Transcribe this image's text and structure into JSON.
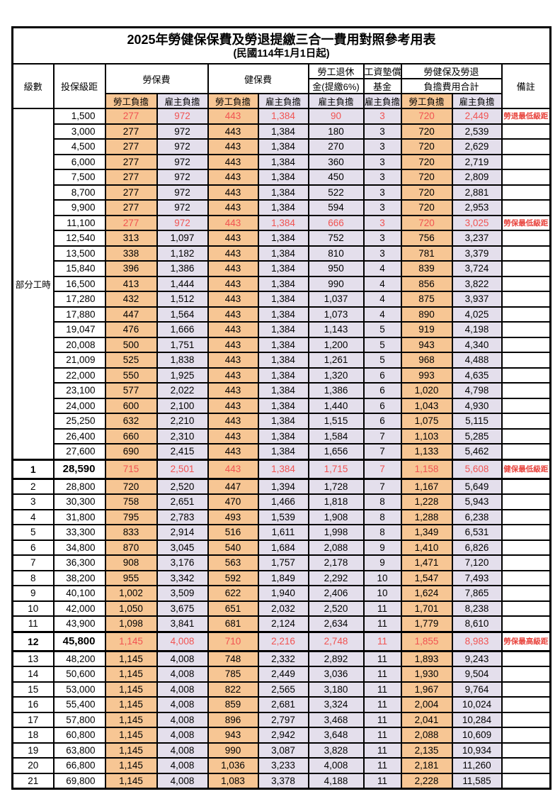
{
  "title": "2025年勞健保保費及勞退提繳三合一費用對照參考用表",
  "subtitle": "(民國114年1月1日起)",
  "part_time_label": "部分工時",
  "colors": {
    "employee_burden_bg": "#F7C694",
    "employer_burden_bg": "#E4DFEC",
    "highlight_value_text": "#F15352",
    "remark_text": "#E8433C",
    "grid_border": "#000000"
  },
  "columns": {
    "level": "級數",
    "bracket": "投保級距",
    "labor_fee": "勞保費",
    "health_fee": "健保費",
    "pension_line1": "勞工退休",
    "pension_line2": "金(提繳6%)",
    "fund_line1": "工資墊償",
    "fund_line2": "基金",
    "total_line1": "勞健保及勞退",
    "total_line2": "負擔費用合計",
    "remark": "備註",
    "employee_burden": "勞工負擔",
    "employer_burden": "雇主負擔"
  },
  "rows": [
    {
      "level": "",
      "bracket": "1,500",
      "cells": [
        "277",
        "972",
        "443",
        "1,384",
        "90",
        "3",
        "720",
        "2,449"
      ],
      "remark": "勞退最低級距",
      "highlight": true,
      "bold": false
    },
    {
      "level": "",
      "bracket": "3,000",
      "cells": [
        "277",
        "972",
        "443",
        "1,384",
        "180",
        "3",
        "720",
        "2,539"
      ],
      "remark": "",
      "highlight": false,
      "bold": false
    },
    {
      "level": "",
      "bracket": "4,500",
      "cells": [
        "277",
        "972",
        "443",
        "1,384",
        "270",
        "3",
        "720",
        "2,629"
      ],
      "remark": "",
      "highlight": false,
      "bold": false
    },
    {
      "level": "",
      "bracket": "6,000",
      "cells": [
        "277",
        "972",
        "443",
        "1,384",
        "360",
        "3",
        "720",
        "2,719"
      ],
      "remark": "",
      "highlight": false,
      "bold": false
    },
    {
      "level": "",
      "bracket": "7,500",
      "cells": [
        "277",
        "972",
        "443",
        "1,384",
        "450",
        "3",
        "720",
        "2,809"
      ],
      "remark": "",
      "highlight": false,
      "bold": false
    },
    {
      "level": "",
      "bracket": "8,700",
      "cells": [
        "277",
        "972",
        "443",
        "1,384",
        "522",
        "3",
        "720",
        "2,881"
      ],
      "remark": "",
      "highlight": false,
      "bold": false
    },
    {
      "level": "",
      "bracket": "9,900",
      "cells": [
        "277",
        "972",
        "443",
        "1,384",
        "594",
        "3",
        "720",
        "2,953"
      ],
      "remark": "",
      "highlight": false,
      "bold": false
    },
    {
      "level": "",
      "bracket": "11,100",
      "cells": [
        "277",
        "972",
        "443",
        "1,384",
        "666",
        "3",
        "720",
        "3,025"
      ],
      "remark": "勞保最低級距",
      "highlight": true,
      "bold": false
    },
    {
      "level": "",
      "bracket": "12,540",
      "cells": [
        "313",
        "1,097",
        "443",
        "1,384",
        "752",
        "3",
        "756",
        "3,237"
      ],
      "remark": "",
      "highlight": false,
      "bold": false
    },
    {
      "level": "",
      "bracket": "13,500",
      "cells": [
        "338",
        "1,182",
        "443",
        "1,384",
        "810",
        "3",
        "781",
        "3,379"
      ],
      "remark": "",
      "highlight": false,
      "bold": false
    },
    {
      "level": "",
      "bracket": "15,840",
      "cells": [
        "396",
        "1,386",
        "443",
        "1,384",
        "950",
        "4",
        "839",
        "3,724"
      ],
      "remark": "",
      "highlight": false,
      "bold": false
    },
    {
      "level": "",
      "bracket": "16,500",
      "cells": [
        "413",
        "1,444",
        "443",
        "1,384",
        "990",
        "4",
        "856",
        "3,822"
      ],
      "remark": "",
      "highlight": false,
      "bold": false
    },
    {
      "level": "",
      "bracket": "17,280",
      "cells": [
        "432",
        "1,512",
        "443",
        "1,384",
        "1,037",
        "4",
        "875",
        "3,937"
      ],
      "remark": "",
      "highlight": false,
      "bold": false
    },
    {
      "level": "",
      "bracket": "17,880",
      "cells": [
        "447",
        "1,564",
        "443",
        "1,384",
        "1,073",
        "4",
        "890",
        "4,025"
      ],
      "remark": "",
      "highlight": false,
      "bold": false
    },
    {
      "level": "",
      "bracket": "19,047",
      "cells": [
        "476",
        "1,666",
        "443",
        "1,384",
        "1,143",
        "5",
        "919",
        "4,198"
      ],
      "remark": "",
      "highlight": false,
      "bold": false
    },
    {
      "level": "",
      "bracket": "20,008",
      "cells": [
        "500",
        "1,751",
        "443",
        "1,384",
        "1,200",
        "5",
        "943",
        "4,340"
      ],
      "remark": "",
      "highlight": false,
      "bold": false
    },
    {
      "level": "",
      "bracket": "21,009",
      "cells": [
        "525",
        "1,838",
        "443",
        "1,384",
        "1,261",
        "5",
        "968",
        "4,488"
      ],
      "remark": "",
      "highlight": false,
      "bold": false
    },
    {
      "level": "",
      "bracket": "22,000",
      "cells": [
        "550",
        "1,925",
        "443",
        "1,384",
        "1,320",
        "6",
        "993",
        "4,635"
      ],
      "remark": "",
      "highlight": false,
      "bold": false
    },
    {
      "level": "",
      "bracket": "23,100",
      "cells": [
        "577",
        "2,022",
        "443",
        "1,384",
        "1,386",
        "6",
        "1,020",
        "4,798"
      ],
      "remark": "",
      "highlight": false,
      "bold": false
    },
    {
      "level": "",
      "bracket": "24,000",
      "cells": [
        "600",
        "2,100",
        "443",
        "1,384",
        "1,440",
        "6",
        "1,043",
        "4,930"
      ],
      "remark": "",
      "highlight": false,
      "bold": false
    },
    {
      "level": "",
      "bracket": "25,250",
      "cells": [
        "632",
        "2,210",
        "443",
        "1,384",
        "1,515",
        "6",
        "1,075",
        "5,115"
      ],
      "remark": "",
      "highlight": false,
      "bold": false
    },
    {
      "level": "",
      "bracket": "26,400",
      "cells": [
        "660",
        "2,310",
        "443",
        "1,384",
        "1,584",
        "7",
        "1,103",
        "5,285"
      ],
      "remark": "",
      "highlight": false,
      "bold": false
    },
    {
      "level": "",
      "bracket": "27,600",
      "cells": [
        "690",
        "2,415",
        "443",
        "1,384",
        "1,656",
        "7",
        "1,133",
        "5,462"
      ],
      "remark": "",
      "highlight": false,
      "bold": false
    },
    {
      "level": "1",
      "bracket": "28,590",
      "cells": [
        "715",
        "2,501",
        "443",
        "1,384",
        "1,715",
        "7",
        "1,158",
        "5,608"
      ],
      "remark": "健保最低級距",
      "highlight": true,
      "bold": true
    },
    {
      "level": "2",
      "bracket": "28,800",
      "cells": [
        "720",
        "2,520",
        "447",
        "1,394",
        "1,728",
        "7",
        "1,167",
        "5,649"
      ],
      "remark": "",
      "highlight": false,
      "bold": false
    },
    {
      "level": "3",
      "bracket": "30,300",
      "cells": [
        "758",
        "2,651",
        "470",
        "1,466",
        "1,818",
        "8",
        "1,228",
        "5,943"
      ],
      "remark": "",
      "highlight": false,
      "bold": false
    },
    {
      "level": "4",
      "bracket": "31,800",
      "cells": [
        "795",
        "2,783",
        "493",
        "1,539",
        "1,908",
        "8",
        "1,288",
        "6,238"
      ],
      "remark": "",
      "highlight": false,
      "bold": false
    },
    {
      "level": "5",
      "bracket": "33,300",
      "cells": [
        "833",
        "2,914",
        "516",
        "1,611",
        "1,998",
        "8",
        "1,349",
        "6,531"
      ],
      "remark": "",
      "highlight": false,
      "bold": false
    },
    {
      "level": "6",
      "bracket": "34,800",
      "cells": [
        "870",
        "3,045",
        "540",
        "1,684",
        "2,088",
        "9",
        "1,410",
        "6,826"
      ],
      "remark": "",
      "highlight": false,
      "bold": false
    },
    {
      "level": "7",
      "bracket": "36,300",
      "cells": [
        "908",
        "3,176",
        "563",
        "1,757",
        "2,178",
        "9",
        "1,471",
        "7,120"
      ],
      "remark": "",
      "highlight": false,
      "bold": false
    },
    {
      "level": "8",
      "bracket": "38,200",
      "cells": [
        "955",
        "3,342",
        "592",
        "1,849",
        "2,292",
        "10",
        "1,547",
        "7,493"
      ],
      "remark": "",
      "highlight": false,
      "bold": false
    },
    {
      "level": "9",
      "bracket": "40,100",
      "cells": [
        "1,002",
        "3,509",
        "622",
        "1,940",
        "2,406",
        "10",
        "1,624",
        "7,865"
      ],
      "remark": "",
      "highlight": false,
      "bold": false
    },
    {
      "level": "10",
      "bracket": "42,000",
      "cells": [
        "1,050",
        "3,675",
        "651",
        "2,032",
        "2,520",
        "11",
        "1,701",
        "8,238"
      ],
      "remark": "",
      "highlight": false,
      "bold": false
    },
    {
      "level": "11",
      "bracket": "43,900",
      "cells": [
        "1,098",
        "3,841",
        "681",
        "2,124",
        "2,634",
        "11",
        "1,779",
        "8,610"
      ],
      "remark": "",
      "highlight": false,
      "bold": false
    },
    {
      "level": "12",
      "bracket": "45,800",
      "cells": [
        "1,145",
        "4,008",
        "710",
        "2,216",
        "2,748",
        "11",
        "1,855",
        "8,983"
      ],
      "remark": "勞保最高級距",
      "highlight": true,
      "bold": true
    },
    {
      "level": "13",
      "bracket": "48,200",
      "cells": [
        "1,145",
        "4,008",
        "748",
        "2,332",
        "2,892",
        "11",
        "1,893",
        "9,243"
      ],
      "remark": "",
      "highlight": false,
      "bold": false
    },
    {
      "level": "14",
      "bracket": "50,600",
      "cells": [
        "1,145",
        "4,008",
        "785",
        "2,449",
        "3,036",
        "11",
        "1,930",
        "9,504"
      ],
      "remark": "",
      "highlight": false,
      "bold": false
    },
    {
      "level": "15",
      "bracket": "53,000",
      "cells": [
        "1,145",
        "4,008",
        "822",
        "2,565",
        "3,180",
        "11",
        "1,967",
        "9,764"
      ],
      "remark": "",
      "highlight": false,
      "bold": false
    },
    {
      "level": "16",
      "bracket": "55,400",
      "cells": [
        "1,145",
        "4,008",
        "859",
        "2,681",
        "3,324",
        "11",
        "2,004",
        "10,024"
      ],
      "remark": "",
      "highlight": false,
      "bold": false
    },
    {
      "level": "17",
      "bracket": "57,800",
      "cells": [
        "1,145",
        "4,008",
        "896",
        "2,797",
        "3,468",
        "11",
        "2,041",
        "10,284"
      ],
      "remark": "",
      "highlight": false,
      "bold": false
    },
    {
      "level": "18",
      "bracket": "60,800",
      "cells": [
        "1,145",
        "4,008",
        "943",
        "2,942",
        "3,648",
        "11",
        "2,088",
        "10,609"
      ],
      "remark": "",
      "highlight": false,
      "bold": false
    },
    {
      "level": "19",
      "bracket": "63,800",
      "cells": [
        "1,145",
        "4,008",
        "990",
        "3,087",
        "3,828",
        "11",
        "2,135",
        "10,934"
      ],
      "remark": "",
      "highlight": false,
      "bold": false
    },
    {
      "level": "20",
      "bracket": "66,800",
      "cells": [
        "1,145",
        "4,008",
        "1,036",
        "3,233",
        "4,008",
        "11",
        "2,181",
        "11,260"
      ],
      "remark": "",
      "highlight": false,
      "bold": false
    },
    {
      "level": "21",
      "bracket": "69,800",
      "cells": [
        "1,145",
        "4,008",
        "1,083",
        "3,378",
        "4,188",
        "11",
        "2,228",
        "11,585"
      ],
      "remark": "",
      "highlight": false,
      "bold": false
    }
  ]
}
